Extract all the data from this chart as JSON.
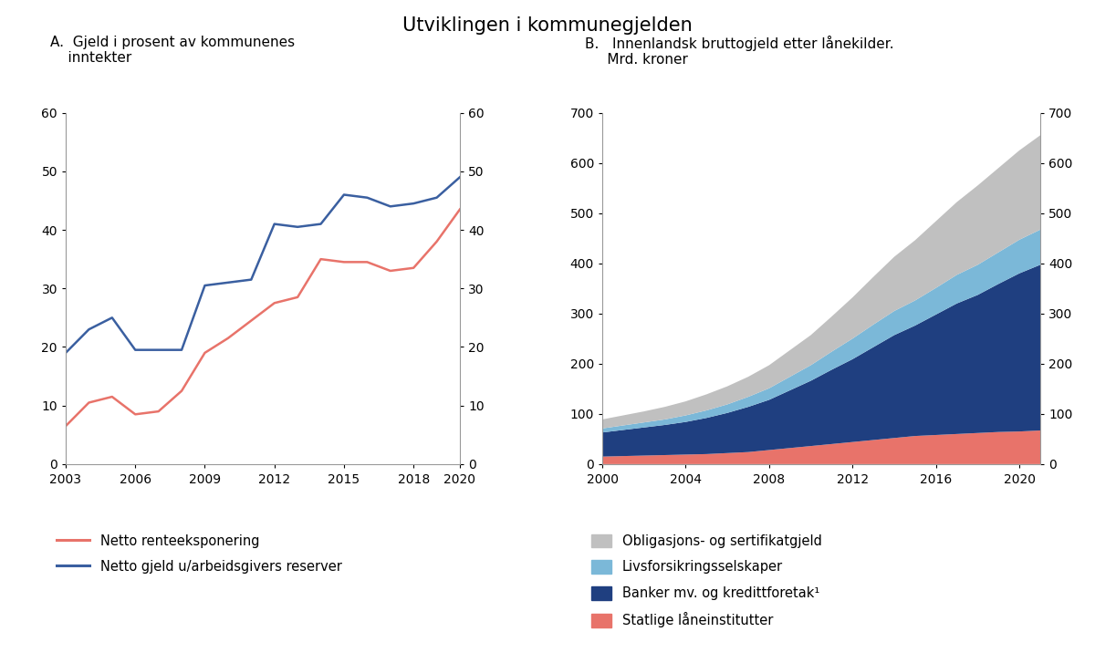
{
  "title": "Utviklingen i kommunegjelden",
  "panel_a_label": "A.  Gjeld i prosent av kommunenes\n    inntekter",
  "panel_b_label": "B.   Innenlandsk bruttogjeld etter lånekilder.\n     Mrd. kroner",
  "line_years": [
    2003,
    2004,
    2005,
    2006,
    2007,
    2008,
    2009,
    2010,
    2011,
    2012,
    2013,
    2014,
    2015,
    2016,
    2017,
    2018,
    2019,
    2020
  ],
  "netto_rente": [
    6.5,
    10.5,
    11.5,
    8.5,
    9.0,
    12.5,
    19.0,
    21.5,
    24.5,
    27.5,
    28.5,
    35.0,
    34.5,
    34.5,
    33.0,
    33.5,
    38.0,
    43.5
  ],
  "netto_gjeld": [
    19.0,
    23.0,
    25.0,
    19.5,
    19.5,
    19.5,
    30.5,
    31.0,
    31.5,
    41.0,
    40.5,
    41.0,
    46.0,
    45.5,
    44.0,
    44.5,
    45.5,
    49.0
  ],
  "line_color_rente": "#E8736A",
  "line_color_gjeld": "#3A5FA0",
  "ylim_a": [
    0,
    60
  ],
  "yticks_a": [
    0,
    10,
    20,
    30,
    40,
    50,
    60
  ],
  "xticks_a": [
    2003,
    2006,
    2009,
    2012,
    2015,
    2018,
    2020
  ],
  "stack_years": [
    2000,
    2001,
    2002,
    2003,
    2004,
    2005,
    2006,
    2007,
    2008,
    2009,
    2010,
    2011,
    2012,
    2013,
    2014,
    2015,
    2016,
    2017,
    2018,
    2019,
    2020,
    2021
  ],
  "statlige": [
    15,
    16,
    17,
    18,
    19,
    20,
    22,
    24,
    28,
    32,
    36,
    40,
    44,
    48,
    52,
    56,
    58,
    60,
    62,
    64,
    65,
    67
  ],
  "banker": [
    48,
    52,
    56,
    60,
    65,
    72,
    80,
    90,
    100,
    115,
    130,
    148,
    165,
    185,
    205,
    220,
    240,
    260,
    275,
    295,
    315,
    330
  ],
  "livsforsikring": [
    8,
    9,
    10,
    11,
    13,
    15,
    17,
    20,
    23,
    27,
    31,
    36,
    41,
    45,
    48,
    50,
    53,
    57,
    60,
    63,
    67,
    70
  ],
  "obligasjoner": [
    18,
    20,
    22,
    25,
    28,
    32,
    36,
    40,
    46,
    53,
    60,
    70,
    82,
    95,
    108,
    120,
    133,
    145,
    158,
    168,
    178,
    188
  ],
  "color_statlige": "#E8736A",
  "color_banker": "#1F3F80",
  "color_livsforsikring": "#7BB8D8",
  "color_obligasjoner": "#C0C0C0",
  "ylim_b": [
    0,
    700
  ],
  "yticks_b": [
    0,
    100,
    200,
    300,
    400,
    500,
    600,
    700
  ],
  "xticks_b": [
    2000,
    2004,
    2008,
    2012,
    2016,
    2020
  ],
  "legend_line1": "Netto renteeksponering",
  "legend_line2": "Netto gjeld u/arbeidsgivers reserver",
  "legend_stack1": "Obligasjons- og sertifikatgjeld",
  "legend_stack2": "Livsforsikringsselskaper",
  "legend_stack3": "Banker mv. og kredittforetak¹",
  "legend_stack4": "Statlige låneinstitutter",
  "bg_color": "#FFFFFF"
}
